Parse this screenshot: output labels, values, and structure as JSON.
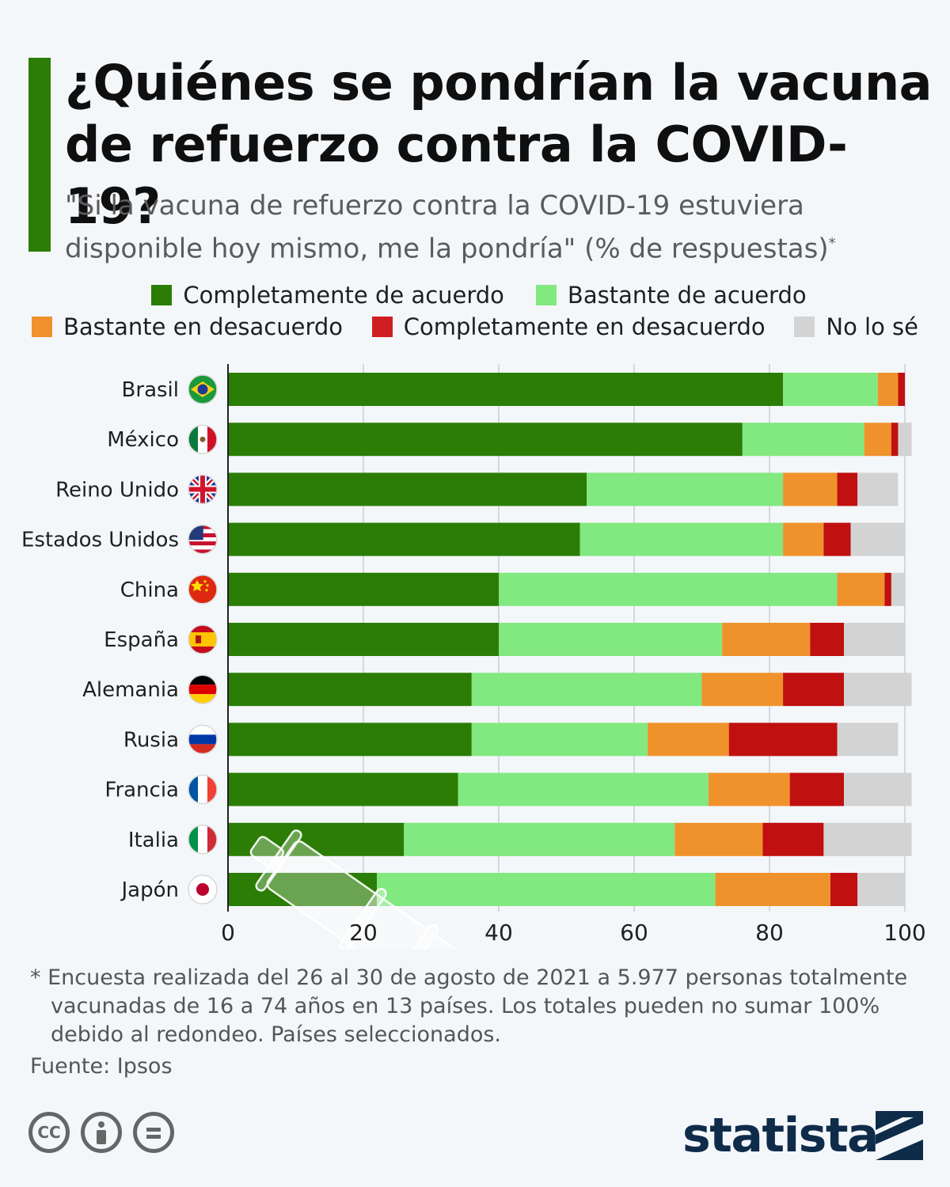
{
  "header": {
    "title": "¿Quiénes se pondrían la vacuna de refuerzo contra la COVID-19?",
    "subtitle": "\"Si la vacuna de refuerzo contra la COVID-19 estuviera disponible hoy mismo, me la pondría\" (% de respuestas)",
    "subtitle_marker": "*"
  },
  "colors": {
    "accent": "#2b7d06",
    "complete_agree": "#2b7d06",
    "somewhat_agree": "#82e880",
    "somewhat_disagree": "#f0922b",
    "complete_disagree": "#c01010",
    "dont_know": "#d3d3d3",
    "brand": "#0f2b4a"
  },
  "legend": [
    {
      "label": "Completamente de acuerdo",
      "color": "#2b7d06"
    },
    {
      "label": "Bastante de acuerdo",
      "color": "#82e880"
    },
    {
      "label": "Bastante en desacuerdo",
      "color": "#f0922b"
    },
    {
      "label": "Completamente en desacuerdo",
      "color": "#d01f22"
    },
    {
      "label": "No lo sé",
      "color": "#d3d3d3"
    }
  ],
  "chart_data": {
    "type": "bar",
    "orientation": "horizontal",
    "stacked": true,
    "categories": [
      "Brasil",
      "México",
      "Reino Unido",
      "Estados Unidos",
      "China",
      "España",
      "Alemania",
      "Rusia",
      "Francia",
      "Italia",
      "Japón"
    ],
    "series": [
      {
        "name": "Completamente de acuerdo",
        "color": "#2b7d06",
        "values": [
          82,
          76,
          53,
          52,
          40,
          40,
          36,
          36,
          34,
          26,
          22
        ]
      },
      {
        "name": "Bastante de acuerdo",
        "color": "#82e880",
        "values": [
          14,
          18,
          29,
          30,
          50,
          33,
          34,
          26,
          37,
          40,
          50
        ]
      },
      {
        "name": "Bastante en desacuerdo",
        "color": "#f0922b",
        "values": [
          3,
          4,
          8,
          6,
          7,
          13,
          12,
          12,
          12,
          13,
          17
        ]
      },
      {
        "name": "Completamente en desacuerdo",
        "color": "#c01010",
        "values": [
          1,
          1,
          3,
          4,
          1,
          5,
          9,
          16,
          8,
          9,
          4
        ]
      },
      {
        "name": "No lo sé",
        "color": "#d3d3d3",
        "values": [
          0,
          2,
          6,
          8,
          2,
          9,
          10,
          9,
          10,
          13,
          7
        ]
      }
    ],
    "xlim": [
      0,
      100
    ],
    "xticks": [
      0,
      20,
      40,
      60,
      80,
      100
    ],
    "grid": true,
    "legend_position": "top",
    "flag_icons": [
      "brazil-flag-icon",
      "mexico-flag-icon",
      "uk-flag-icon",
      "usa-flag-icon",
      "china-flag-icon",
      "spain-flag-icon",
      "germany-flag-icon",
      "russia-flag-icon",
      "france-flag-icon",
      "italy-flag-icon",
      "japan-flag-icon"
    ]
  },
  "footnote": "* Encuesta realizada del 26 al 30 de agosto de 2021 a 5.977 personas totalmente vacunadas de 16 a 74 años en 13 países. Los totales pueden no sumar 100% debido al redondeo. Países seleccionados.",
  "source": "Fuente: Ipsos",
  "license": {
    "cc_label": "CC",
    "icons": [
      "cc-icon",
      "by-icon",
      "nd-icon"
    ]
  },
  "brand": "statista"
}
